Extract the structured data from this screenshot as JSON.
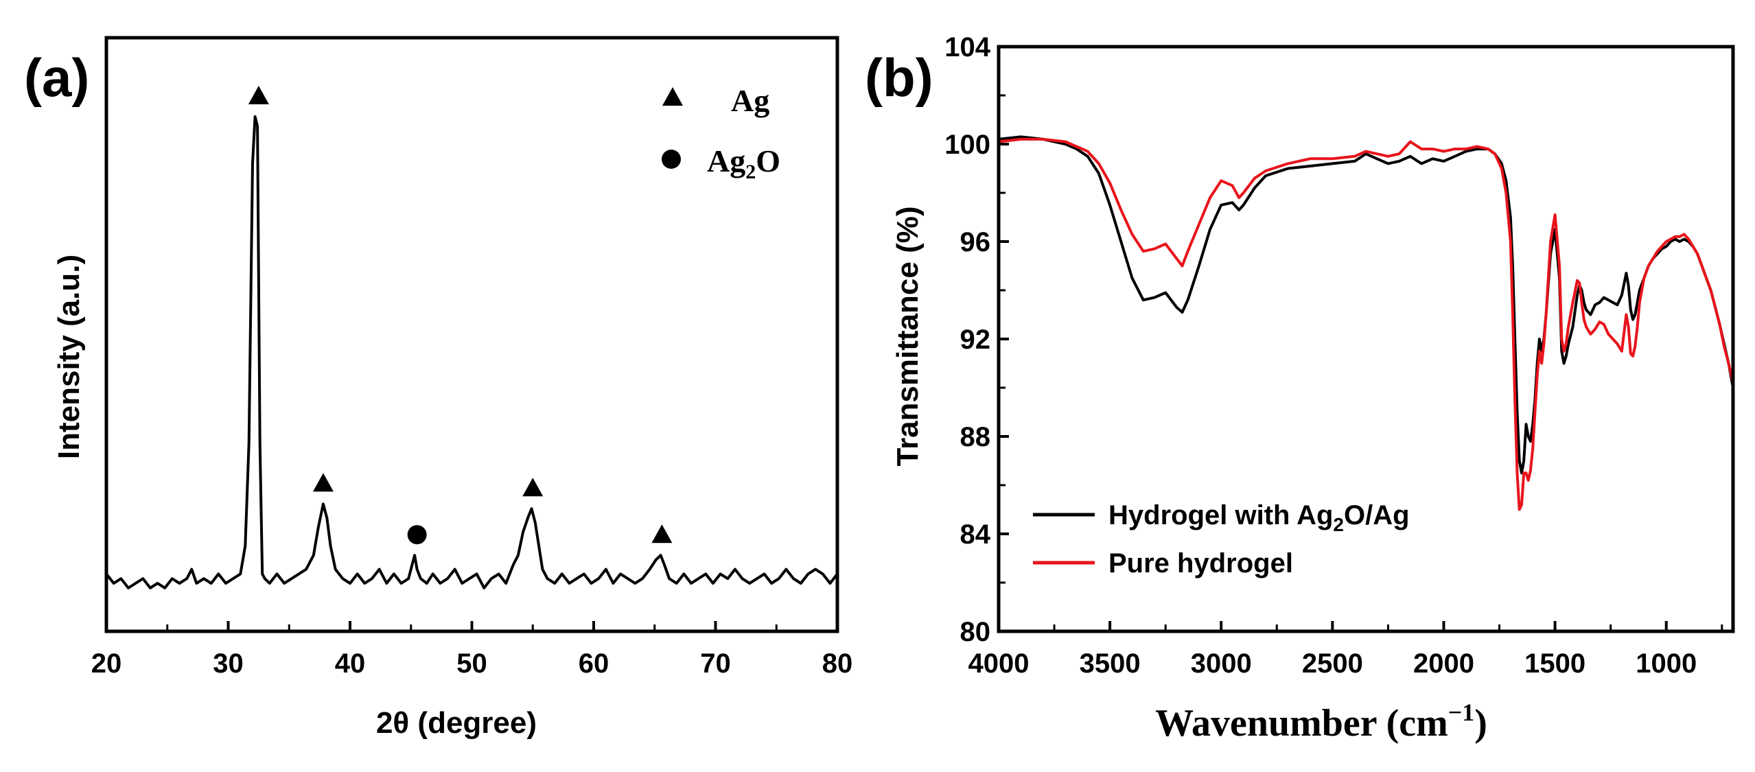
{
  "chart_data": [
    {
      "type": "line",
      "panel_label": "(a)",
      "xlabel": "2θ (degree)",
      "ylabel": "Intensity (a.u.)",
      "xlim": [
        20,
        80
      ],
      "ylim": [
        0,
        100
      ],
      "y_ticks_shown": false,
      "x_ticks": [
        "20",
        "30",
        "40",
        "50",
        "60",
        "70",
        "80"
      ],
      "legend": {
        "position": "top-right",
        "entries": [
          {
            "marker": "triangle",
            "text": "Ag"
          },
          {
            "marker": "circle",
            "text": "Ag",
            "sub": "2",
            "suffix": "O"
          }
        ]
      },
      "series": [
        {
          "color": "#000000",
          "x": [
            20,
            20.6,
            21.2,
            21.8,
            22.4,
            23,
            23.6,
            24.2,
            24.8,
            25.4,
            26,
            26.6,
            27,
            27.4,
            28,
            28.6,
            29.2,
            29.8,
            30.4,
            31,
            31.4,
            31.7,
            32,
            32.2,
            32.4,
            32.6,
            32.8,
            33,
            33.4,
            34,
            34.6,
            35.2,
            35.8,
            36.4,
            37,
            37.4,
            37.8,
            38.1,
            38.4,
            38.8,
            39.4,
            40,
            40.6,
            41.2,
            41.8,
            42.4,
            43,
            43.6,
            44.2,
            44.8,
            45.1,
            45.3,
            45.5,
            45.8,
            46.3,
            46.8,
            47.4,
            48,
            48.6,
            49.2,
            49.8,
            50.4,
            51,
            51.6,
            52.2,
            52.8,
            53.4,
            53.8,
            54.2,
            54.6,
            54.9,
            55.2,
            55.5,
            55.8,
            56.2,
            56.8,
            57.4,
            58,
            58.6,
            59.2,
            59.8,
            60.4,
            61,
            61.6,
            62.2,
            62.8,
            63.4,
            64,
            64.6,
            65.1,
            65.5,
            65.8,
            66.2,
            66.8,
            67.4,
            68,
            68.6,
            69.2,
            69.8,
            70.4,
            71,
            71.6,
            72.2,
            72.8,
            73.4,
            74,
            74.6,
            75.2,
            75.8,
            76.4,
            77,
            77.6,
            78.2,
            78.8,
            79.4,
            80
          ],
          "y": [
            2,
            0,
            1,
            -1,
            0,
            1,
            -1,
            0,
            -1,
            1,
            0,
            1,
            3,
            0,
            1,
            0,
            2,
            0,
            1,
            2,
            8,
            30,
            90,
            100,
            98,
            30,
            2,
            1,
            0,
            2,
            0,
            1,
            2,
            3,
            6,
            12,
            17,
            14,
            8,
            3,
            1,
            0,
            2,
            0,
            1,
            3,
            0,
            2,
            0,
            1,
            4,
            6,
            3,
            1,
            0,
            2,
            0,
            1,
            3,
            0,
            1,
            2,
            -1,
            1,
            2,
            0,
            4,
            6,
            11,
            14,
            16,
            13,
            8,
            3,
            1,
            0,
            2,
            0,
            1,
            2,
            0,
            1,
            3,
            0,
            2,
            1,
            0,
            1,
            3,
            5,
            6,
            4,
            1,
            0,
            2,
            0,
            1,
            2,
            0,
            2,
            1,
            3,
            1,
            0,
            1,
            2,
            0,
            1,
            3,
            1,
            0,
            2,
            3,
            2,
            0,
            2
          ]
        }
      ],
      "peak_markers": [
        {
          "x": 32.5,
          "marker": "triangle"
        },
        {
          "x": 37.8,
          "marker": "triangle"
        },
        {
          "x": 45.5,
          "marker": "circle"
        },
        {
          "x": 55.0,
          "marker": "triangle"
        },
        {
          "x": 65.6,
          "marker": "triangle"
        }
      ]
    },
    {
      "type": "line",
      "panel_label": "(b)",
      "xlabel": "Wavenumber (cm",
      "xlabel_sup": "−1",
      "xlabel_suffix": ")",
      "ylabel": "Transmittance (%)",
      "xlim": [
        4000,
        700
      ],
      "ylim": [
        80,
        104
      ],
      "x_reversed": true,
      "x_ticks": [
        "4000",
        "3500",
        "3000",
        "2500",
        "2000",
        "1500",
        "1000"
      ],
      "y_ticks": [
        "80",
        "84",
        "88",
        "92",
        "96",
        "100",
        "104"
      ],
      "legend": {
        "position": "bottom-left",
        "entries": [
          {
            "color": "#000000",
            "text": "Hydrogel with Ag",
            "sub": "2",
            "suffix": "O/Ag"
          },
          {
            "color": "#e8141b",
            "text": "Pure hydrogel"
          }
        ]
      },
      "series": [
        {
          "name": "Hydrogel with Ag2O/Ag",
          "color": "#000000",
          "x": [
            4000,
            3900,
            3800,
            3700,
            3650,
            3600,
            3550,
            3500,
            3450,
            3400,
            3350,
            3300,
            3250,
            3200,
            3175,
            3150,
            3100,
            3050,
            3000,
            2950,
            2920,
            2900,
            2850,
            2800,
            2700,
            2600,
            2500,
            2400,
            2350,
            2300,
            2250,
            2200,
            2150,
            2100,
            2050,
            2000,
            1950,
            1900,
            1850,
            1800,
            1770,
            1740,
            1720,
            1700,
            1690,
            1680,
            1670,
            1660,
            1650,
            1640,
            1630,
            1620,
            1610,
            1600,
            1590,
            1580,
            1570,
            1560,
            1550,
            1540,
            1520,
            1500,
            1480,
            1470,
            1460,
            1450,
            1440,
            1420,
            1400,
            1390,
            1380,
            1370,
            1360,
            1340,
            1320,
            1300,
            1280,
            1260,
            1240,
            1220,
            1200,
            1180,
            1170,
            1160,
            1150,
            1140,
            1130,
            1120,
            1100,
            1080,
            1060,
            1040,
            1020,
            1000,
            980,
            960,
            940,
            920,
            900,
            880,
            860,
            840,
            820,
            800,
            780,
            760,
            740,
            720,
            700
          ],
          "y": [
            100.2,
            100.3,
            100.2,
            100.0,
            99.8,
            99.5,
            98.8,
            97.5,
            96.0,
            94.5,
            93.6,
            93.7,
            93.9,
            93.3,
            93.1,
            93.6,
            95.0,
            96.5,
            97.5,
            97.6,
            97.3,
            97.5,
            98.2,
            98.7,
            99.0,
            99.1,
            99.2,
            99.3,
            99.6,
            99.4,
            99.2,
            99.3,
            99.5,
            99.2,
            99.4,
            99.3,
            99.5,
            99.7,
            99.8,
            99.8,
            99.6,
            99.2,
            98.5,
            97.0,
            95.0,
            92.0,
            89.0,
            87.0,
            86.5,
            87.0,
            88.5,
            88.0,
            87.8,
            88.5,
            89.5,
            91.0,
            92.0,
            91.5,
            92.0,
            93.0,
            95.5,
            96.5,
            94.5,
            91.5,
            91.0,
            91.3,
            91.8,
            92.5,
            93.8,
            94.2,
            94.0,
            93.5,
            93.2,
            93.0,
            93.4,
            93.5,
            93.7,
            93.6,
            93.5,
            93.4,
            93.8,
            94.7,
            94.2,
            93.2,
            92.8,
            93.0,
            93.5,
            94.0,
            94.5,
            95.0,
            95.3,
            95.5,
            95.7,
            95.8,
            96.0,
            96.1,
            96.0,
            96.1,
            96.0,
            95.8,
            95.5,
            95.0,
            94.5,
            94.0,
            93.3,
            92.6,
            91.8,
            91.0,
            90.0
          ]
        },
        {
          "name": "Pure hydrogel",
          "color": "#e8141b",
          "x": [
            4000,
            3900,
            3800,
            3700,
            3650,
            3600,
            3550,
            3500,
            3450,
            3400,
            3350,
            3300,
            3250,
            3200,
            3175,
            3150,
            3100,
            3050,
            3000,
            2950,
            2920,
            2900,
            2850,
            2800,
            2700,
            2600,
            2500,
            2400,
            2350,
            2300,
            2250,
            2200,
            2150,
            2100,
            2050,
            2000,
            1950,
            1900,
            1850,
            1800,
            1770,
            1740,
            1720,
            1700,
            1690,
            1680,
            1670,
            1660,
            1650,
            1640,
            1630,
            1620,
            1610,
            1600,
            1590,
            1580,
            1570,
            1560,
            1550,
            1540,
            1520,
            1500,
            1480,
            1470,
            1460,
            1450,
            1440,
            1420,
            1400,
            1390,
            1380,
            1370,
            1360,
            1340,
            1320,
            1300,
            1280,
            1260,
            1240,
            1220,
            1200,
            1180,
            1170,
            1160,
            1150,
            1140,
            1130,
            1120,
            1100,
            1080,
            1060,
            1040,
            1020,
            1000,
            980,
            960,
            940,
            920,
            900,
            880,
            860,
            840,
            820,
            800,
            780,
            760,
            740,
            720,
            700
          ],
          "y": [
            100.1,
            100.2,
            100.2,
            100.1,
            99.9,
            99.7,
            99.2,
            98.4,
            97.3,
            96.3,
            95.6,
            95.7,
            95.9,
            95.3,
            95.0,
            95.6,
            96.7,
            97.8,
            98.5,
            98.3,
            97.8,
            98.0,
            98.6,
            98.9,
            99.2,
            99.4,
            99.4,
            99.5,
            99.7,
            99.6,
            99.5,
            99.6,
            100.1,
            99.8,
            99.8,
            99.7,
            99.8,
            99.8,
            99.9,
            99.8,
            99.6,
            99.0,
            98.0,
            96.0,
            93.0,
            89.5,
            86.5,
            85.0,
            85.2,
            86.5,
            86.5,
            86.2,
            86.6,
            87.5,
            89.0,
            90.5,
            91.5,
            91.0,
            91.8,
            93.0,
            96.0,
            97.1,
            95.0,
            92.0,
            91.5,
            91.8,
            92.5,
            93.5,
            94.4,
            94.3,
            93.5,
            92.8,
            92.5,
            92.2,
            92.4,
            92.7,
            92.6,
            92.2,
            92.0,
            91.8,
            91.5,
            93.0,
            92.5,
            91.4,
            91.3,
            91.7,
            92.5,
            93.5,
            94.5,
            95.0,
            95.3,
            95.6,
            95.8,
            96.0,
            96.1,
            96.2,
            96.2,
            96.3,
            96.1,
            95.8,
            95.5,
            95.0,
            94.5,
            94.0,
            93.3,
            92.6,
            91.7,
            91.0,
            90.2
          ]
        }
      ]
    }
  ]
}
